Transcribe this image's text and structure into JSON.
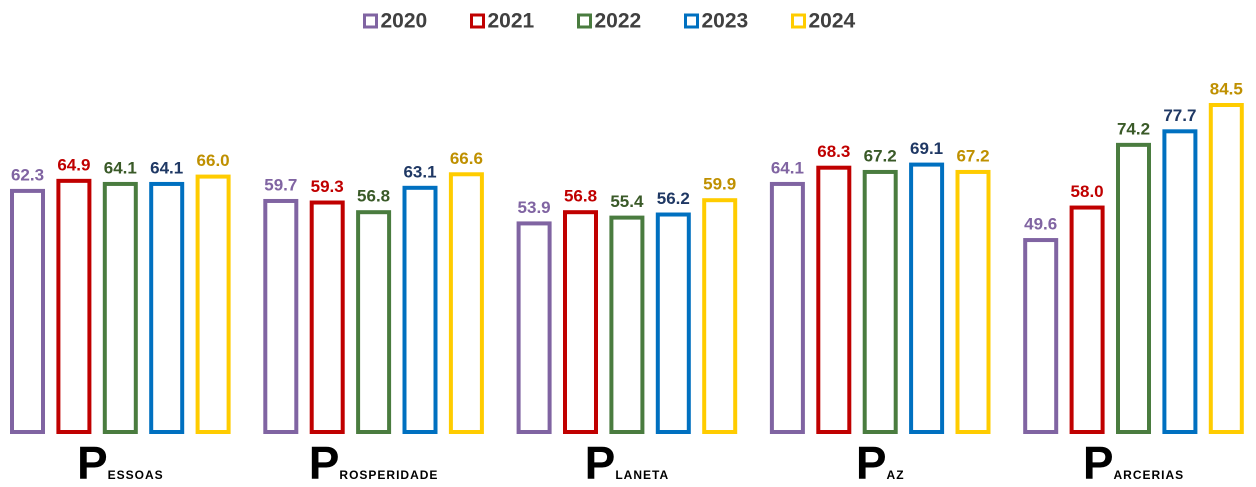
{
  "chart_data": {
    "type": "bar",
    "categories": [
      "Pessoas",
      "Prosperidade",
      "Planeta",
      "Paz",
      "Parcerias"
    ],
    "series": [
      {
        "name": "2020",
        "color": "#8064a2",
        "label_color": "#8064a2",
        "values": [
          62.3,
          59.7,
          53.9,
          64.1,
          49.6
        ],
        "value_labels": [
          "62.3",
          "59.7",
          "53.9",
          "64.1",
          "49.6"
        ]
      },
      {
        "name": "2021",
        "color": "#c00000",
        "label_color": "#c00000",
        "values": [
          64.9,
          59.3,
          56.8,
          68.3,
          58.0
        ],
        "value_labels": [
          "64.9",
          "59.3",
          "56.8",
          "68.3",
          "58.0"
        ]
      },
      {
        "name": "2022",
        "color": "#4a7c3f",
        "label_color": "#3a5a28",
        "values": [
          64.1,
          56.8,
          55.4,
          67.2,
          74.2
        ],
        "value_labels": [
          "64.1",
          "56.8",
          "55.4",
          "67.2",
          "74.2"
        ]
      },
      {
        "name": "2023",
        "color": "#0070c0",
        "label_color": "#1f3864",
        "values": [
          64.1,
          63.1,
          56.2,
          69.1,
          77.7
        ],
        "value_labels": [
          "64.1",
          "63.1",
          "56.2",
          "69.1",
          "77.7"
        ]
      },
      {
        "name": "2024",
        "color": "#ffcc00",
        "label_color": "#bf9000",
        "values": [
          66.0,
          66.6,
          59.9,
          67.2,
          84.5
        ],
        "value_labels": [
          "66.0",
          "66.6",
          "59.9",
          "67.2",
          "84.5"
        ]
      }
    ],
    "legend": "top"
  }
}
